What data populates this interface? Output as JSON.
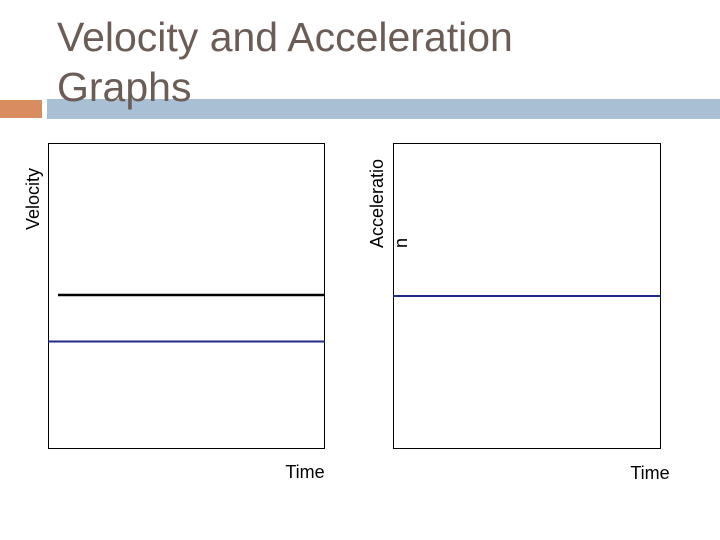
{
  "title": "Velocity and Acceleration Graphs",
  "panels": [
    {
      "y_label": [
        "Velocity"
      ],
      "x_label": "Time"
    },
    {
      "y_label": [
        "Acceleratio",
        "n"
      ],
      "x_label": "Time"
    }
  ]
}
